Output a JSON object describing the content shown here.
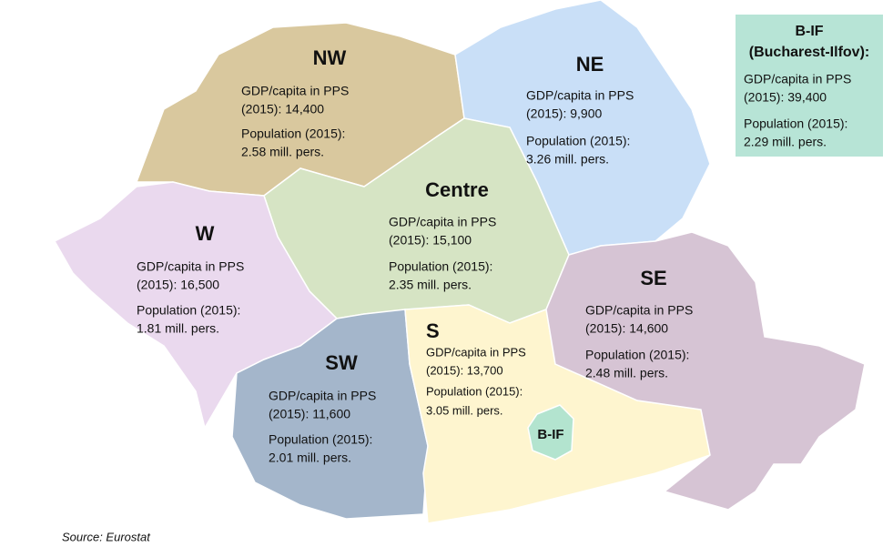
{
  "regions": [
    {
      "name": "NW",
      "lines": [
        "GDP/capita in PPS",
        "(2015): 14,400",
        "Population (2015):",
        "2.58 mill. pers."
      ]
    },
    {
      "name": "NE",
      "lines": [
        "GDP/capita in PPS",
        "(2015): 9,900",
        "Population (2015):",
        "3.26 mill. pers."
      ]
    },
    {
      "name": "Centre",
      "lines": [
        "GDP/capita in PPS",
        "(2015): 15,100",
        "Population (2015):",
        "2.35 mill. pers."
      ]
    },
    {
      "name": "W",
      "lines": [
        "GDP/capita in PPS",
        "(2015): 16,500",
        "Population (2015):",
        "1.81 mill. pers."
      ]
    },
    {
      "name": "SE",
      "lines": [
        "GDP/capita in PPS",
        "(2015): 14,600",
        "Population (2015):",
        "2.48 mill. pers."
      ]
    },
    {
      "name": "S",
      "lines": [
        "GDP/capita in PPS",
        "(2015): 13,700",
        "Population (2015):",
        "3.05 mill. pers."
      ]
    },
    {
      "name": "SW",
      "lines": [
        "GDP/capita in PPS",
        "(2015): 11,600",
        "Population (2015):",
        "2.01 mill. pers."
      ]
    }
  ],
  "bucharest_box": {
    "title": [
      "B-IF",
      "(Bucharest-Ilfov):"
    ],
    "lines": [
      "GDP/capita in PPS",
      "(2015): 39,400",
      "Population (2015):",
      "2.29 mill. pers."
    ]
  },
  "map_label": "B-IF",
  "source": "Source: Eurostat"
}
